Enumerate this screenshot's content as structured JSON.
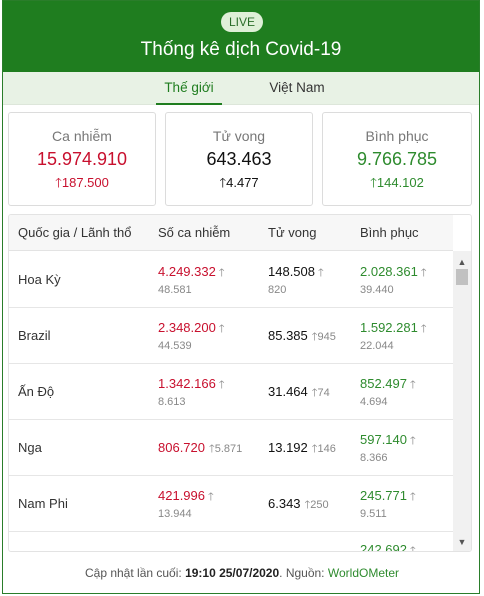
{
  "header": {
    "live_badge": "LIVE",
    "title": "Thống kê dịch Covid-19"
  },
  "tabs": [
    {
      "label": "Thế giới",
      "active": true
    },
    {
      "label": "Việt Nam",
      "active": false
    }
  ],
  "summary": {
    "cases": {
      "label": "Ca nhiễm",
      "value": "15.974.910",
      "delta": "187.500",
      "color": "#c8102e"
    },
    "deaths": {
      "label": "Tử vong",
      "value": "643.463",
      "delta": "4.477",
      "color": "#111111"
    },
    "recovered": {
      "label": "Bình phục",
      "value": "9.766.785",
      "delta": "144.102",
      "color": "#2e8b2e"
    }
  },
  "table": {
    "columns": [
      "Quốc gia / Lãnh thổ",
      "Số ca nhiễm",
      "Tử vong",
      "Bình phục"
    ],
    "rows": [
      {
        "country": "Hoa Kỳ",
        "cases": "4.249.332",
        "cases_delta": "48.581",
        "deaths": "148.508",
        "deaths_delta": "820",
        "recovered": "2.028.361",
        "recovered_delta": "39.440"
      },
      {
        "country": "Brazil",
        "cases": "2.348.200",
        "cases_delta": "44.539",
        "deaths": "85.385",
        "deaths_delta": "945",
        "recovered": "1.592.281",
        "recovered_delta": "22.044"
      },
      {
        "country": "Ấn Độ",
        "cases": "1.342.166",
        "cases_delta": "8.613",
        "deaths": "31.464",
        "deaths_delta": "74",
        "recovered": "852.497",
        "recovered_delta": "4.694"
      },
      {
        "country": "Nga",
        "cases": "806.720",
        "cases_delta": "5.871",
        "deaths": "13.192",
        "deaths_delta": "146",
        "recovered": "597.140",
        "recovered_delta": "8.366"
      },
      {
        "country": "Nam Phi",
        "cases": "421.996",
        "cases_delta": "13.944",
        "deaths": "6.343",
        "deaths_delta": "250",
        "recovered": "245.771",
        "recovered_delta": "9.511"
      },
      {
        "recovered": "242.692"
      }
    ]
  },
  "footer": {
    "prefix": "Cập nhật lần cuối:",
    "time": "19:10 25/07/2020",
    "source_prefix": ". Nguồn:",
    "source": "WorldOMeter"
  },
  "icons": {
    "up_arrow": "up-arrow-icon",
    "scroll_up": "scroll-up-icon",
    "scroll_down": "scroll-down-icon"
  }
}
